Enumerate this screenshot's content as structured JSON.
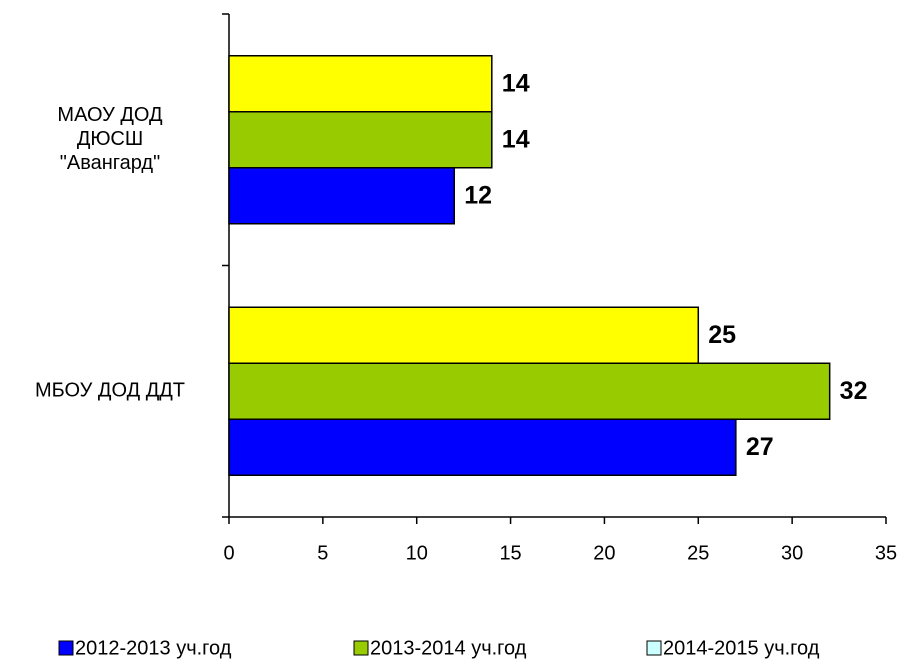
{
  "chart_data": {
    "type": "bar",
    "orientation": "horizontal",
    "categories": [
      "МАОУ ДОД\nДЮСШ\n\"Авангард\"",
      "МБОУ ДОД ДДТ"
    ],
    "series": [
      {
        "name": "2012-2013 уч.год",
        "color": "#0000FF",
        "values": [
          12,
          27
        ]
      },
      {
        "name": "2013-2014 уч.год",
        "color": "#99CC00",
        "values": [
          14,
          32
        ]
      },
      {
        "name": "2014-2015 уч.год",
        "color": "#FFFF00",
        "legend_color": "#CCFFFF",
        "values": [
          14,
          25
        ]
      }
    ],
    "xlim": [
      0,
      35
    ],
    "xticks": [
      0,
      5,
      10,
      15,
      20,
      25,
      30,
      35
    ],
    "grid": false,
    "legend": "bottom"
  }
}
